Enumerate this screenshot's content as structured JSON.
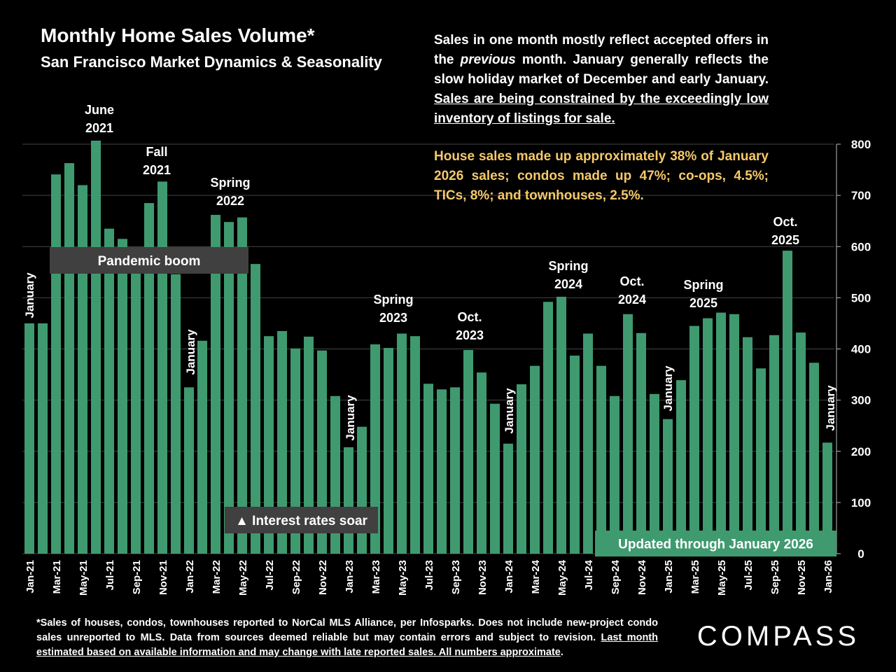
{
  "chart_data": {
    "type": "bar",
    "title": "Monthly Home Sales Volume*",
    "subtitle": "San Francisco Market Dynamics & Seasonality",
    "categories": [
      "Jan-21",
      null,
      "Mar-21",
      null,
      "May-21",
      null,
      "Jul-21",
      null,
      "Sep-21",
      null,
      "Nov-21",
      null,
      "Jan-22",
      null,
      "Mar-22",
      null,
      "May-22",
      null,
      "Jul-22",
      null,
      "Sep-22",
      null,
      "Nov-22",
      null,
      "Jan-23",
      null,
      "Mar-23",
      null,
      "May-23",
      null,
      "Jul-23",
      null,
      "Sep-23",
      null,
      "Nov-23",
      null,
      "Jan-24",
      null,
      "Mar-24",
      null,
      "May-24",
      null,
      "Jul-24",
      null,
      "Sep-24",
      null,
      "Nov-24",
      null,
      "Jan-25",
      null,
      "Mar-25",
      null,
      "May-25",
      null,
      "Jul-25",
      null,
      "Sep-25",
      null,
      "Nov-25",
      null,
      "Jan-26"
    ],
    "values": [
      450,
      450,
      741,
      763,
      720,
      807,
      635,
      615,
      570,
      685,
      727,
      546,
      325,
      416,
      662,
      648,
      657,
      566,
      425,
      435,
      401,
      424,
      397,
      308,
      208,
      248,
      409,
      402,
      430,
      425,
      332,
      321,
      325,
      398,
      354,
      293,
      215,
      331,
      367,
      492,
      502,
      387,
      430,
      367,
      308,
      468,
      431,
      312,
      263,
      339,
      445,
      460,
      471,
      468,
      423,
      362,
      427,
      592,
      432,
      373,
      217
    ],
    "color": "#3f9a70",
    "ylim": [
      0,
      800
    ],
    "yticks": [
      0,
      100,
      200,
      300,
      400,
      500,
      600,
      700,
      800
    ],
    "grid": true,
    "annotations": [
      [
        "June",
        "2021"
      ],
      [
        "Fall",
        "2021"
      ],
      [
        "Spring",
        "2022"
      ],
      [
        "Spring",
        "2023"
      ],
      [
        "Oct.",
        "2023"
      ],
      [
        "Spring",
        "2024"
      ],
      [
        "Oct.",
        "2024"
      ],
      [
        "Spring",
        "2025"
      ],
      [
        "Oct.",
        "2025"
      ]
    ],
    "january_labels": [
      "January",
      "January",
      "January",
      "January",
      "January",
      "January"
    ],
    "boxes": [
      "Pandemic boom",
      "▲ Interest rates soar",
      "Updated through January 2026"
    ]
  },
  "notes": {
    "p1": [
      "Sales in one month mostly reflect accepted offers in the ",
      "previous",
      " month. January generally reflects the slow holiday market of December and early January. ",
      "Sales are being constrained by the exceedingly low inventory of listings for sale."
    ],
    "p2": "House sales made up approximately 38% of January 2026 sales; condos made up 47%; co-ops, 4.5%; TICs, 8%; and townhouses, 2.5%."
  },
  "footnote": [
    "*Sales of houses, condos, townhouses reported to NorCal MLS Alliance, per Infosparks. Does not include new-project condo sales unreported to MLS. Data from sources deemed reliable but may contain errors and subject to revision. ",
    "Last month estimated based on available information and may change with late reported sales. All numbers approximate",
    "."
  ],
  "logo": "COMPASS"
}
